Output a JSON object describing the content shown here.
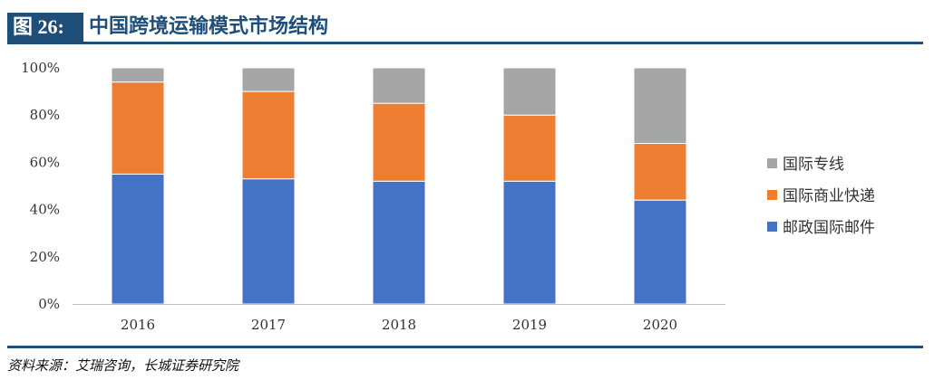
{
  "header": {
    "figure_label": "图 26:",
    "title": "中国跨境运输模式市场结构"
  },
  "source": "资料来源：艾瑞咨询，长城证券研究院",
  "chart_data": {
    "type": "bar",
    "stacked": true,
    "percent": true,
    "categories": [
      "2016",
      "2017",
      "2018",
      "2019",
      "2020"
    ],
    "series": [
      {
        "name": "邮政国际邮件",
        "color": "#4472c4",
        "values": [
          55,
          53,
          52,
          52,
          44
        ]
      },
      {
        "name": "国际商业快递",
        "color": "#ed7d31",
        "values": [
          39,
          37,
          33,
          28,
          24
        ]
      },
      {
        "name": "国际专线",
        "color": "#a5a5a5",
        "values": [
          6,
          10,
          15,
          20,
          32
        ]
      }
    ],
    "ylim": [
      0,
      100
    ],
    "yticks": [
      0,
      20,
      40,
      60,
      80,
      100
    ],
    "ytick_labels": [
      "0%",
      "20%",
      "40%",
      "60%",
      "80%",
      "100%"
    ],
    "legend_order": [
      "国际专线",
      "国际商业快递",
      "邮政国际邮件"
    ],
    "legend_position": "right",
    "grid": false
  }
}
